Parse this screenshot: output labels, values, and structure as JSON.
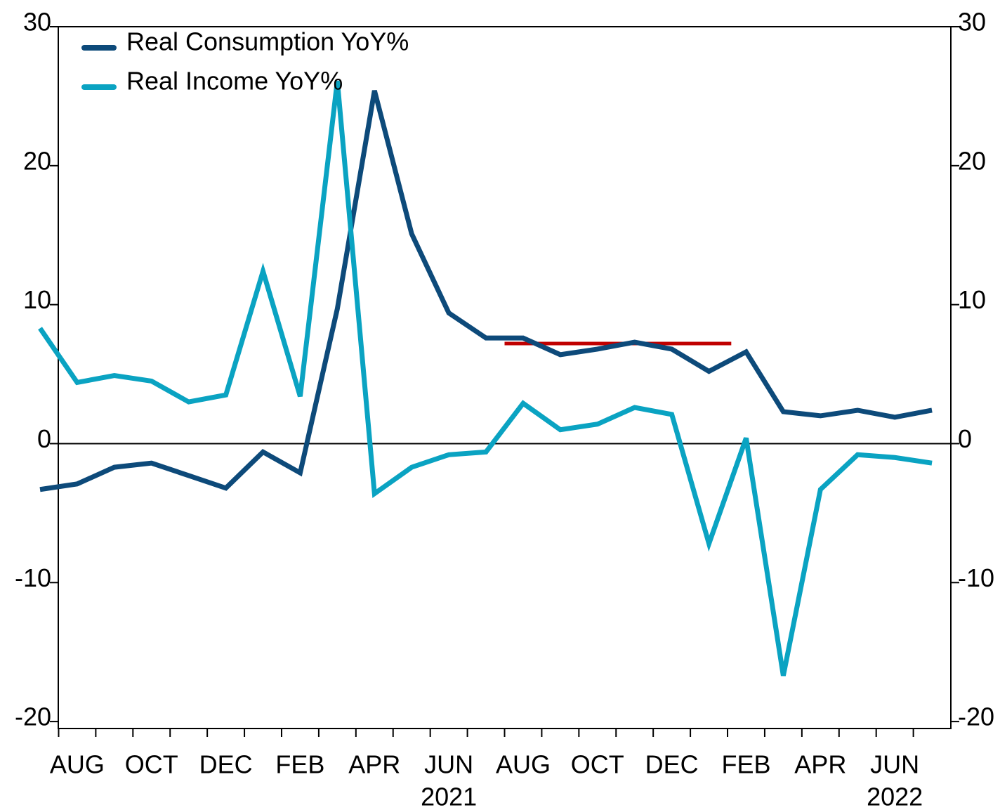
{
  "chart_data": {
    "type": "line",
    "categories": [
      null,
      "AUG",
      null,
      "OCT",
      null,
      "DEC",
      null,
      "FEB",
      null,
      "APR",
      null,
      "JUN",
      null,
      "AUG",
      null,
      "OCT",
      null,
      "DEC",
      null,
      "FEB",
      null,
      "APR",
      null,
      "JUN",
      null
    ],
    "year_labels": [
      {
        "text": "2021",
        "index": 11
      },
      {
        "text": "2022",
        "index": 23
      }
    ],
    "series": [
      {
        "name": "Real Consumption YoY%",
        "color": "#0d4a7a",
        "values": [
          -3.3,
          -2.9,
          -1.7,
          -1.4,
          -2.3,
          -3.2,
          -0.6,
          -2.1,
          9.7,
          25.4,
          15.1,
          9.4,
          7.6,
          7.6,
          6.4,
          6.8,
          7.3,
          6.8,
          5.2,
          6.6,
          2.3,
          2.0,
          2.4,
          1.9,
          2.4
        ]
      },
      {
        "name": "Real Income YoY%",
        "color": "#0aa3c2",
        "values": [
          8.3,
          4.4,
          4.9,
          4.5,
          3.0,
          3.5,
          12.4,
          3.4,
          26.1,
          -3.6,
          -1.7,
          -0.8,
          -0.6,
          2.9,
          1.0,
          1.4,
          2.6,
          2.1,
          -7.2,
          0.4,
          -16.7,
          -3.3,
          -0.8,
          -1.0,
          -1.4
        ]
      }
    ],
    "reference_line": {
      "value": 7.2,
      "from": 12.5,
      "to": 18.6,
      "color": "#c00000"
    },
    "zero_line": 0,
    "ylim": [
      -20.5,
      30
    ],
    "yticks": [
      -20,
      -10,
      0,
      10,
      20,
      30
    ],
    "y2lim": [
      -20.5,
      30
    ],
    "y2ticks": [
      -20,
      -10,
      0,
      10,
      20,
      30
    ],
    "legend": "top-left"
  }
}
